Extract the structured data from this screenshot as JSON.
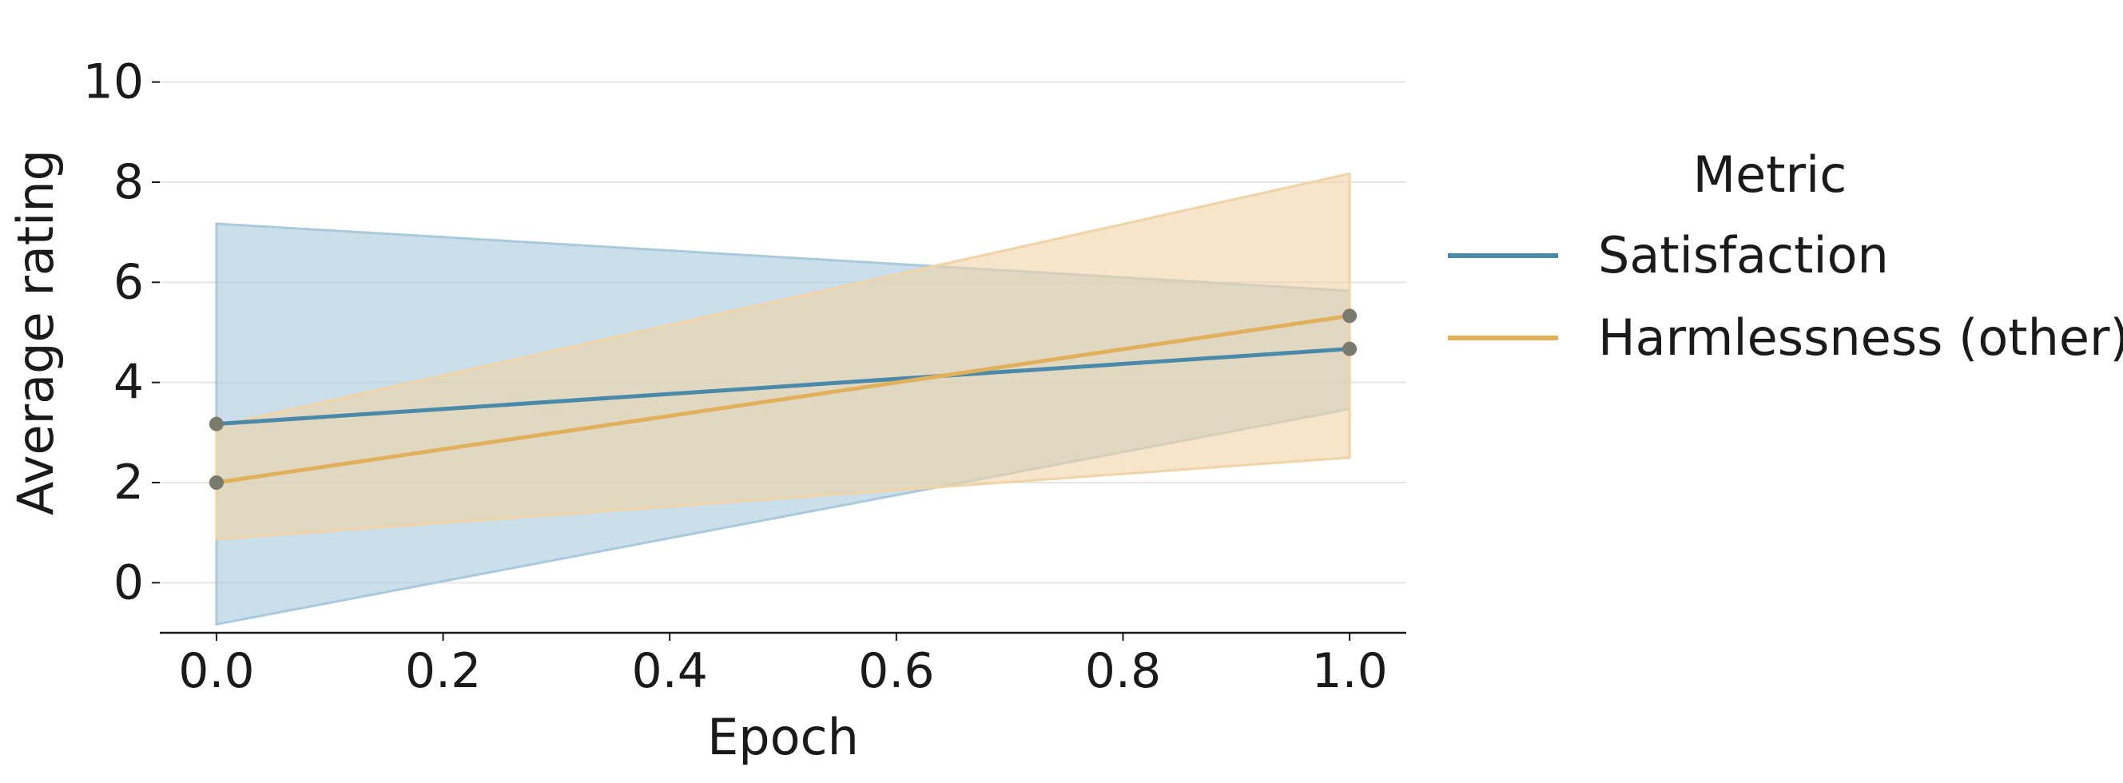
{
  "chart_data": {
    "type": "line",
    "xlabel": "Epoch",
    "ylabel": "Average rating",
    "xlim": [
      -0.05,
      1.05
    ],
    "ylim": [
      -1,
      11
    ],
    "xticks": [
      0.0,
      0.2,
      0.4,
      0.6,
      0.8,
      1.0
    ],
    "xtick_labels": [
      "0.0",
      "0.2",
      "0.4",
      "0.6",
      "0.8",
      "1.0"
    ],
    "yticks": [
      0,
      2,
      4,
      6,
      8,
      10
    ],
    "ytick_labels": [
      "0",
      "2",
      "4",
      "6",
      "8",
      "10"
    ],
    "grid": "horizontal",
    "legend": {
      "title": "Metric",
      "placement": "right"
    },
    "series": [
      {
        "name": "Satisfaction",
        "color": "#4a8aa8",
        "band_color": "#a9c9dc",
        "x": [
          0.0,
          1.0
        ],
        "y": [
          3.17,
          4.67
        ],
        "ci_lower": [
          -0.83,
          3.47
        ],
        "ci_upper": [
          7.17,
          5.83
        ]
      },
      {
        "name": "Harmlessness (other)",
        "color": "#e0b05a",
        "band_color": "#f0d3a6",
        "x": [
          0.0,
          1.0
        ],
        "y": [
          2.0,
          5.33
        ],
        "ci_lower": [
          0.87,
          2.5
        ],
        "ci_upper": [
          3.13,
          8.17
        ]
      }
    ],
    "marker_color": "#7a7a6e"
  }
}
